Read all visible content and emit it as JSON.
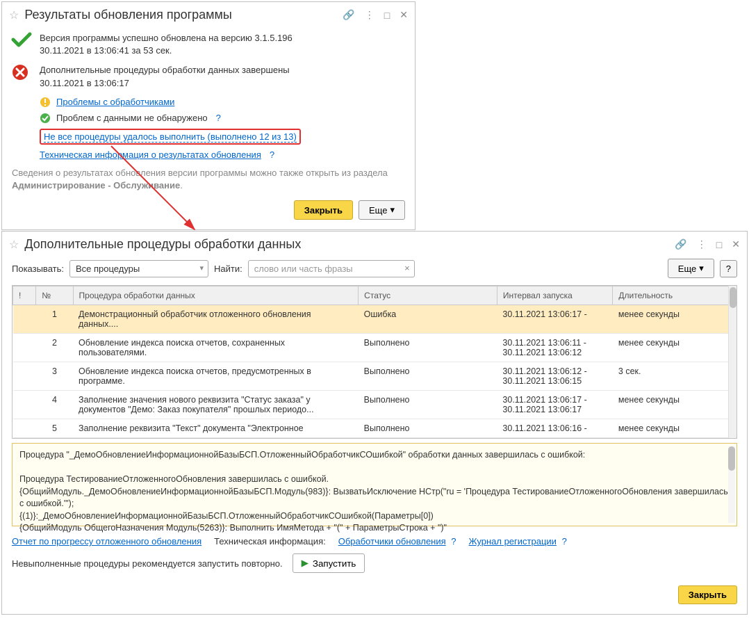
{
  "colors": {
    "link": "#0066cc",
    "yellow_btn_bg": "#f9d648",
    "yellow_btn_border": "#c9a828",
    "error_row_bg": "#ffecc0",
    "err_panel_border": "#e0c060",
    "red_highlight": "#e03030",
    "check_green": "#34a234",
    "x_red": "#d83020",
    "warn_yellow": "#f4c030"
  },
  "window1": {
    "title": "Результаты обновления программы",
    "success": {
      "line1": "Версия программы успешно обновлена на версию 3.1.5.196",
      "line2": "30.11.2021 в 13:06:41 за 53 сек."
    },
    "fail": {
      "line1": "Дополнительные процедуры обработки данных завершены",
      "line2": "30.11.2021 в 13:06:17"
    },
    "sub": {
      "problems_link": "Проблемы с обработчиками",
      "no_data_problems": "Проблем с данными не обнаружено",
      "not_all_link": "Не все процедуры удалось выполнить (выполнено 12 из 13)",
      "tech_info_link": "Техническая информация о результатах обновления"
    },
    "hint_prefix": "Сведения о результатах обновления версии программы можно также открыть из раздела ",
    "hint_bold": "Администрирование - Обслуживание",
    "close_btn": "Закрыть",
    "more_btn": "Еще"
  },
  "window2": {
    "title": "Дополнительные процедуры обработки данных",
    "filter": {
      "show_label": "Показывать:",
      "show_value": "Все процедуры",
      "find_label": "Найти:",
      "find_placeholder": "слово или часть фразы",
      "more_btn": "Еще",
      "help": "?"
    },
    "table": {
      "columns": {
        "excl": "!",
        "num": "№",
        "proc": "Процедура обработки данных",
        "status": "Статус",
        "interval": "Интервал запуска",
        "duration": "Длительность"
      },
      "rows": [
        {
          "num": "1",
          "proc": "Демонстрационный обработчик отложенного обновления данных....",
          "status": "Ошибка",
          "interval": "30.11.2021 13:06:17 -",
          "duration": "менее секунды",
          "error": true
        },
        {
          "num": "2",
          "proc": "Обновление индекса поиска отчетов, сохраненных пользователями.",
          "status": "Выполнено",
          "interval": "30.11.2021 13:06:11 - 30.11.2021 13:06:12",
          "duration": "менее секунды",
          "error": false
        },
        {
          "num": "3",
          "proc": "Обновление индекса поиска отчетов, предусмотренных в программе.",
          "status": "Выполнено",
          "interval": "30.11.2021 13:06:12 - 30.11.2021 13:06:15",
          "duration": "3 сек.",
          "error": false
        },
        {
          "num": "4",
          "proc": "Заполнение значения нового реквизита \"Статус заказа\" у документов \"Демо: Заказ покупателя\" прошлых периодо...",
          "status": "Выполнено",
          "interval": "30.11.2021 13:06:17 - 30.11.2021 13:06:17",
          "duration": "менее секунды",
          "error": false
        },
        {
          "num": "5",
          "proc": "Заполнение реквизита \"Текст\" документа \"Электронное",
          "status": "Выполнено",
          "interval": "30.11.2021 13:06:16 -",
          "duration": "менее секунды",
          "error": false
        }
      ]
    },
    "error_panel": {
      "l1": "Процедура \"_ДемоОбновлениеИнформационнойБазыБСП.ОтложенныйОбработчикСОшибкой\" обработки данных завершилась с ошибкой:",
      "l2": "Процедура ТестированиеОтложенногоОбновления завершилась с ошибкой.",
      "l3": "{ОбщийМодуль._ДемоОбновлениеИнформационнойБазыБСП.Модуль(983)}: ВызватьИсключение НСтр(\"ru = 'Процедура ТестированиеОтложенногоОбновления завершилась с ошибкой.'\");",
      "l4": "{(1)}:_ДемоОбновлениеИнформационнойБазыБСП.ОтложенныйОбработчикСОшибкой(Параметры[0])",
      "l5": "{ОбщийМодуль ОбщегоНазначения Модуль(5263)}:  Выполнить ИмяМетода + \"(\" + ПараметрыСтрока + \")\""
    },
    "footer": {
      "progress_link": "Отчет по прогрессу отложенного обновления",
      "tech_label": "Техническая информация:",
      "handlers_link": "Обработчики обновления",
      "log_link": "Журнал регистрации",
      "rerun_hint": "Невыполненные процедуры рекомендуется запустить повторно.",
      "run_btn": "Запустить",
      "close_btn": "Закрыть"
    }
  }
}
